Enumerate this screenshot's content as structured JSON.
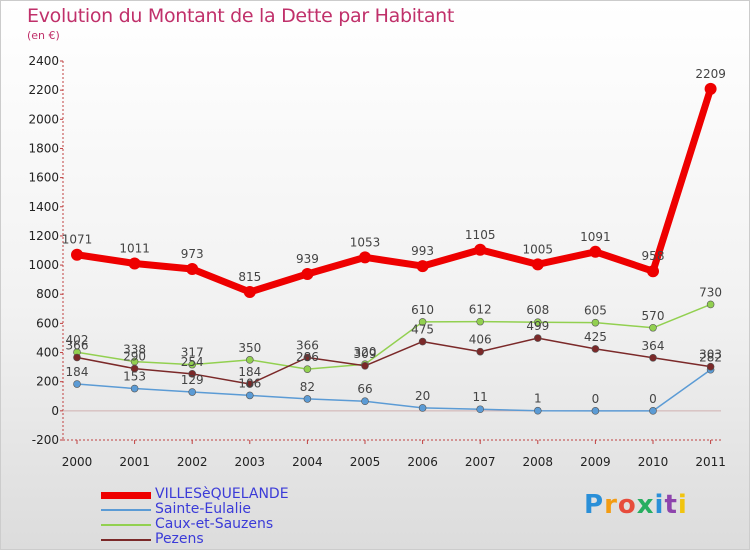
{
  "title": "Evolution du Montant de la Dette par Habitant",
  "subtitle": "(en €)",
  "logo": {
    "text": "Proxiti",
    "letters": [
      "P",
      "r",
      "o",
      "x",
      "i",
      "t",
      "i"
    ],
    "colors": [
      "#2a8fd8",
      "#f39c12",
      "#e74c3c",
      "#27ae60",
      "#2a8fd8",
      "#8e44ad",
      "#f1c40f"
    ]
  },
  "chart_data": {
    "type": "line",
    "title": "Evolution du Montant de la Dette par Habitant",
    "subtitle": "(en €)",
    "categories": [
      "2000",
      "2001",
      "2002",
      "2003",
      "2004",
      "2005",
      "2006",
      "2007",
      "2008",
      "2009",
      "2010",
      "2011"
    ],
    "ylim": [
      -200,
      2400
    ],
    "yticks": [
      "-200",
      "0",
      "200",
      "400",
      "600",
      "800",
      "1000",
      "1200",
      "1400",
      "1600",
      "1800",
      "2000",
      "2200",
      "2400"
    ],
    "grid": false,
    "legend_position": "bottom-left",
    "series": [
      {
        "name": "VILLESèQUELANDE",
        "color": "#ee0000",
        "values": [
          1071,
          1011,
          973,
          815,
          939,
          1053,
          993,
          1105,
          1005,
          1091,
          958,
          2209
        ],
        "labels": [
          "1071",
          "1011",
          "973",
          "815",
          "939",
          "1053",
          "993",
          "1105",
          "1005",
          "1091",
          "958",
          "2209"
        ]
      },
      {
        "name": "Sainte-Eulalie",
        "color": "#5b9bd5",
        "values": [
          184,
          153,
          129,
          106,
          82,
          66,
          20,
          11,
          1,
          0,
          0,
          282
        ],
        "labels": [
          "184",
          "153",
          "129",
          "106",
          "82",
          "66",
          "20",
          "11",
          "1",
          "0",
          "0",
          "282"
        ]
      },
      {
        "name": "Caux-et-Sauzens",
        "color": "#92d050",
        "values": [
          402,
          338,
          317,
          350,
          286,
          320,
          610,
          612,
          608,
          605,
          570,
          730
        ],
        "labels": [
          "402",
          "338",
          "317",
          "350",
          "286",
          "320",
          "610",
          "612",
          "608",
          "605",
          "570",
          "730"
        ]
      },
      {
        "name": "Pezens",
        "color": "#7b2929",
        "values": [
          366,
          290,
          254,
          184,
          366,
          309,
          475,
          406,
          499,
          425,
          364,
          303
        ],
        "labels": [
          "366",
          "290",
          "254",
          "184",
          "366",
          "309",
          "475",
          "406",
          "499",
          "425",
          "364",
          "303"
        ]
      }
    ]
  }
}
